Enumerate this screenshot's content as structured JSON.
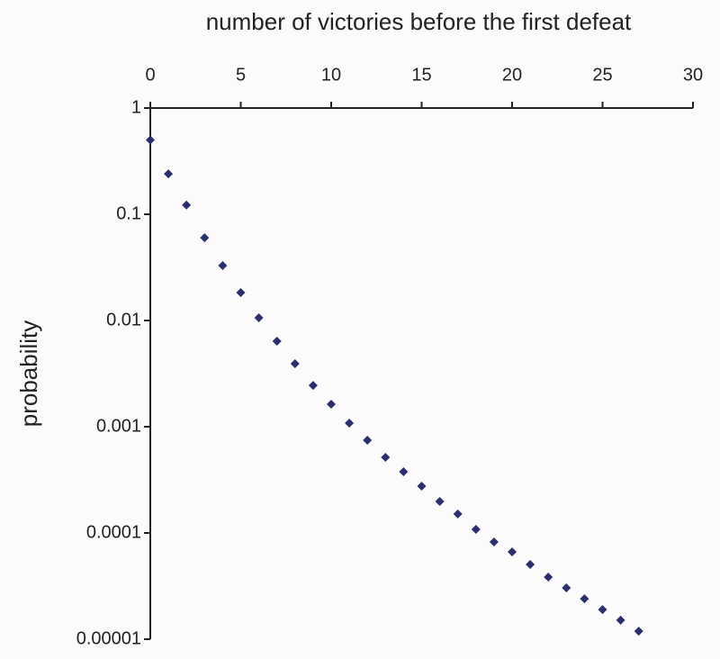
{
  "chart_data": {
    "type": "scatter",
    "x_label": "number of victories before the first defeat",
    "y_label": "probability",
    "log_y": true,
    "x_axis_position": "top",
    "series": [
      {
        "color": "#2b2f6e",
        "x": [
          0,
          1,
          2,
          3,
          4,
          5,
          6,
          7,
          8,
          9,
          10,
          11,
          12,
          13,
          14,
          15,
          16,
          17,
          18,
          19,
          20,
          21,
          22,
          23,
          24,
          25,
          26,
          27
        ],
        "values": [
          0.5,
          0.24,
          0.122,
          0.06,
          0.0329,
          0.0183,
          0.0106,
          0.00638,
          0.00392,
          0.00245,
          0.00163,
          0.00108,
          0.000746,
          0.000515,
          0.000377,
          0.000276,
          0.000198,
          0.000151,
          0.000108,
          8.22e-05,
          6.64e-05,
          5.05e-05,
          3.84e-05,
          3.04e-05,
          2.4e-05,
          1.9e-05,
          1.51e-05,
          1.19e-05
        ]
      }
    ],
    "xlim": [
      0,
      30
    ],
    "xticks": [
      0,
      5,
      10,
      15,
      20,
      25,
      30
    ],
    "ylim": [
      1e-05,
      1
    ],
    "yticks": [
      1,
      0.1,
      0.01,
      0.001,
      0.0001,
      {
        "value": 1e-05,
        "label": "0.00001"
      }
    ]
  }
}
